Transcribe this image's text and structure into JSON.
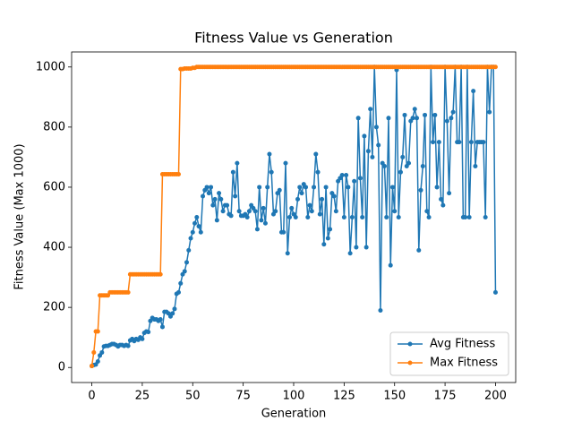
{
  "chart_data": {
    "type": "line",
    "title": "Fitness Value vs Generation",
    "x_label": "Generation",
    "y_label": "Fitness Value (Max 1000)",
    "xlim": [
      -10,
      210
    ],
    "ylim": [
      -50,
      1050
    ],
    "xticks": [
      0,
      25,
      50,
      75,
      100,
      125,
      150,
      175,
      200
    ],
    "yticks": [
      0,
      200,
      400,
      600,
      800,
      1000
    ],
    "legend_position": "lower right",
    "x": [
      0,
      1,
      2,
      3,
      4,
      5,
      6,
      7,
      8,
      9,
      10,
      11,
      12,
      13,
      14,
      15,
      16,
      17,
      18,
      19,
      20,
      21,
      22,
      23,
      24,
      25,
      26,
      27,
      28,
      29,
      30,
      31,
      32,
      33,
      34,
      35,
      36,
      37,
      38,
      39,
      40,
      41,
      42,
      43,
      44,
      45,
      46,
      47,
      48,
      49,
      50,
      51,
      52,
      53,
      54,
      55,
      56,
      57,
      58,
      59,
      60,
      61,
      62,
      63,
      64,
      65,
      66,
      67,
      68,
      69,
      70,
      71,
      72,
      73,
      74,
      75,
      76,
      77,
      78,
      79,
      80,
      81,
      82,
      83,
      84,
      85,
      86,
      87,
      88,
      89,
      90,
      91,
      92,
      93,
      94,
      95,
      96,
      97,
      98,
      99,
      100,
      101,
      102,
      103,
      104,
      105,
      106,
      107,
      108,
      109,
      110,
      111,
      112,
      113,
      114,
      115,
      116,
      117,
      118,
      119,
      120,
      121,
      122,
      123,
      124,
      125,
      126,
      127,
      128,
      129,
      130,
      131,
      132,
      133,
      134,
      135,
      136,
      137,
      138,
      139,
      140,
      141,
      142,
      143,
      144,
      145,
      146,
      147,
      148,
      149,
      150,
      151,
      152,
      153,
      154,
      155,
      156,
      157,
      158,
      159,
      160,
      161,
      162,
      163,
      164,
      165,
      166,
      167,
      168,
      169,
      170,
      171,
      172,
      173,
      174,
      175,
      176,
      177,
      178,
      179,
      180,
      181,
      182,
      183,
      184,
      185,
      186,
      187,
      188,
      189,
      190,
      191,
      192,
      193,
      194,
      195,
      196,
      197,
      198,
      199,
      200
    ],
    "series": [
      {
        "name": "Avg Fitness",
        "color": "#1f77b4",
        "values": [
          5,
          8,
          10,
          20,
          40,
          50,
          70,
          72,
          72,
          75,
          78,
          78,
          75,
          70,
          75,
          75,
          72,
          75,
          72,
          90,
          95,
          88,
          95,
          92,
          100,
          95,
          115,
          120,
          118,
          155,
          165,
          160,
          160,
          155,
          160,
          135,
          185,
          185,
          180,
          170,
          180,
          195,
          245,
          250,
          280,
          310,
          320,
          350,
          390,
          430,
          450,
          480,
          500,
          470,
          450,
          570,
          590,
          600,
          580,
          600,
          540,
          560,
          490,
          580,
          560,
          520,
          540,
          540,
          510,
          505,
          650,
          570,
          680,
          520,
          505,
          505,
          510,
          500,
          520,
          540,
          530,
          520,
          460,
          600,
          490,
          530,
          480,
          600,
          710,
          650,
          510,
          520,
          580,
          590,
          450,
          450,
          680,
          380,
          500,
          530,
          510,
          500,
          560,
          600,
          580,
          610,
          600,
          500,
          540,
          520,
          600,
          710,
          650,
          510,
          560,
          410,
          600,
          430,
          460,
          580,
          570,
          520,
          620,
          630,
          640,
          500,
          640,
          600,
          380,
          500,
          620,
          400,
          830,
          630,
          500,
          770,
          400,
          720,
          860,
          700,
          1000,
          800,
          740,
          190,
          680,
          670,
          500,
          830,
          340,
          600,
          520,
          990,
          500,
          650,
          700,
          840,
          670,
          680,
          820,
          830,
          860,
          830,
          390,
          590,
          670,
          840,
          520,
          500,
          1000,
          750,
          840,
          600,
          750,
          560,
          540,
          1000,
          820,
          580,
          830,
          850,
          1000,
          750,
          750,
          1000,
          500,
          500,
          1000,
          500,
          750,
          920,
          670,
          750,
          750,
          750,
          750,
          500,
          1000,
          850,
          1000,
          1000,
          250
        ]
      },
      {
        "name": "Max Fitness",
        "color": "#ff7f0e",
        "values": [
          5,
          50,
          120,
          120,
          240,
          240,
          240,
          240,
          240,
          250,
          250,
          250,
          250,
          250,
          250,
          250,
          250,
          250,
          250,
          310,
          310,
          310,
          310,
          310,
          310,
          310,
          310,
          310,
          310,
          310,
          310,
          310,
          310,
          310,
          310,
          643,
          643,
          643,
          643,
          643,
          643,
          643,
          643,
          643,
          993,
          993,
          995,
          995,
          995,
          995,
          997,
          997,
          1000,
          1000,
          1000,
          1000,
          1000,
          1000,
          1000,
          1000,
          1000,
          1000,
          1000,
          1000,
          1000,
          1000,
          1000,
          1000,
          1000,
          1000,
          1000,
          1000,
          1000,
          1000,
          1000,
          1000,
          1000,
          1000,
          1000,
          1000,
          1000,
          1000,
          1000,
          1000,
          1000,
          1000,
          1000,
          1000,
          1000,
          1000,
          1000,
          1000,
          1000,
          1000,
          1000,
          1000,
          1000,
          1000,
          1000,
          1000,
          1000,
          1000,
          1000,
          1000,
          1000,
          1000,
          1000,
          1000,
          1000,
          1000,
          1000,
          1000,
          1000,
          1000,
          1000,
          1000,
          1000,
          1000,
          1000,
          1000,
          1000,
          1000,
          1000,
          1000,
          1000,
          1000,
          1000,
          1000,
          1000,
          1000,
          1000,
          1000,
          1000,
          1000,
          1000,
          1000,
          1000,
          1000,
          1000,
          1000,
          1000,
          1000,
          1000,
          1000,
          1000,
          1000,
          1000,
          1000,
          1000,
          1000,
          1000,
          1000,
          1000,
          1000,
          1000,
          1000,
          1000,
          1000,
          1000,
          1000,
          1000,
          1000,
          1000,
          1000,
          1000,
          1000,
          1000,
          1000,
          1000,
          1000,
          1000,
          1000,
          1000,
          1000,
          1000,
          1000,
          1000,
          1000,
          1000,
          1000,
          1000,
          1000,
          1000,
          1000,
          1000,
          1000,
          1000,
          1000,
          1000,
          1000,
          1000,
          1000,
          1000,
          1000,
          1000,
          1000,
          1000,
          1000,
          1000,
          1000,
          1000
        ]
      }
    ]
  }
}
